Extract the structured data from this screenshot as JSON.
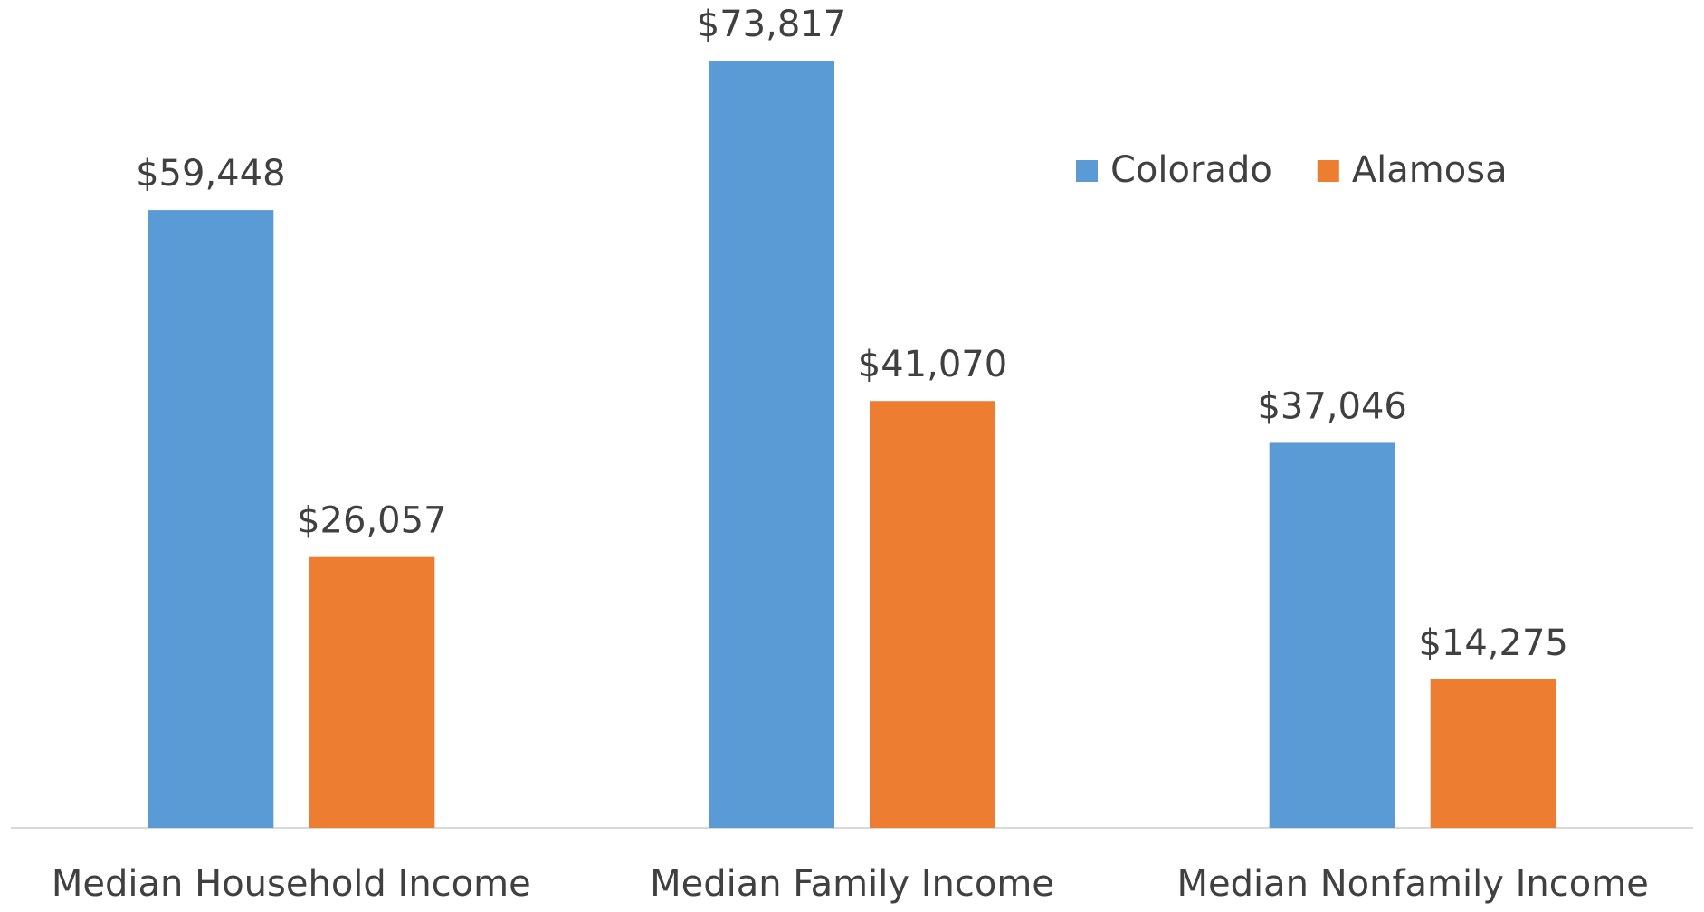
{
  "chart_data": {
    "type": "bar",
    "categories": [
      "Median Household Income",
      "Median Family Income",
      "Median Nonfamily Income"
    ],
    "series": [
      {
        "name": "Colorado",
        "color": "#5b9bd5",
        "values": [
          59448,
          73817,
          37046
        ],
        "value_labels": [
          "$59,448",
          "$73,817",
          "$37,046"
        ]
      },
      {
        "name": "Alamosa",
        "color": "#ed7d31",
        "values": [
          26057,
          41070,
          14275
        ],
        "value_labels": [
          "$26,057",
          "$41,070",
          "$14,275"
        ]
      }
    ],
    "ylim": [
      0,
      80000
    ],
    "legend": "upper right"
  }
}
